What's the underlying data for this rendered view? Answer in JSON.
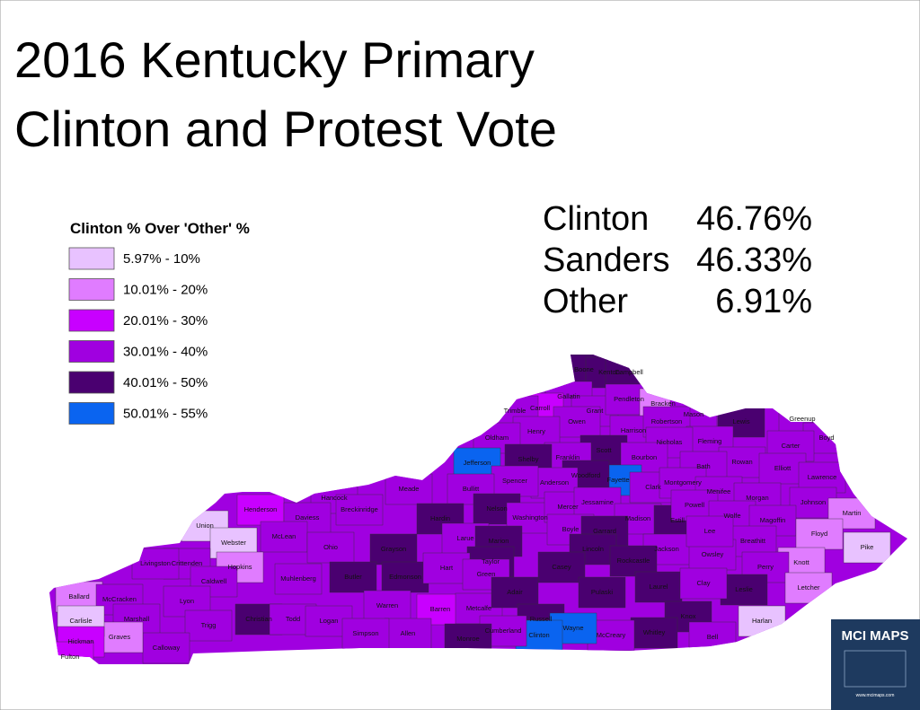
{
  "title": [
    "2016 Kentucky Primary",
    "Clinton and Protest Vote"
  ],
  "legend": {
    "title": "Clinton % Over 'Other' %",
    "entries": [
      {
        "label": "5.97% - 10%",
        "color": "#e8c2ff"
      },
      {
        "label": "10.01% - 20%",
        "color": "#e07cff"
      },
      {
        "label": "20.01% - 30%",
        "color": "#c800ff"
      },
      {
        "label": "30.01% - 40%",
        "color": "#a000e0"
      },
      {
        "label": "40.01% - 50%",
        "color": "#4a0070"
      },
      {
        "label": "50.01% - 55%",
        "color": "#0a64f0"
      }
    ]
  },
  "results": [
    {
      "name": "Clinton",
      "value": "46.76%"
    },
    {
      "name": "Sanders",
      "value": "46.33%"
    },
    {
      "name": "Other",
      "value": "6.91%"
    }
  ],
  "counties": [
    {
      "name": "Boone",
      "color": "#4a0070"
    },
    {
      "name": "Kenton",
      "color": "#4a0070"
    },
    {
      "name": "Campbell",
      "color": "#4a0070"
    },
    {
      "name": "Gallatin",
      "color": "#a000e0"
    },
    {
      "name": "Carroll",
      "color": "#c800ff"
    },
    {
      "name": "Trimble",
      "color": "#a000e0"
    },
    {
      "name": "Grant",
      "color": "#a000e0"
    },
    {
      "name": "Pendleton",
      "color": "#a000e0"
    },
    {
      "name": "Bracken",
      "color": "#e07cff"
    },
    {
      "name": "Mason",
      "color": "#a000e0"
    },
    {
      "name": "Owen",
      "color": "#a000e0"
    },
    {
      "name": "Henry",
      "color": "#a000e0"
    },
    {
      "name": "Oldham",
      "color": "#a000e0"
    },
    {
      "name": "Harrison",
      "color": "#a000e0"
    },
    {
      "name": "Robertson",
      "color": "#a000e0"
    },
    {
      "name": "Lewis",
      "color": "#4a0070"
    },
    {
      "name": "Greenup",
      "color": "#a000e0"
    },
    {
      "name": "Boyd",
      "color": "#a000e0"
    },
    {
      "name": "Fleming",
      "color": "#a000e0"
    },
    {
      "name": "Nicholas",
      "color": "#a000e0"
    },
    {
      "name": "Scott",
      "color": "#4a0070"
    },
    {
      "name": "Franklin",
      "color": "#a000e0"
    },
    {
      "name": "Shelby",
      "color": "#4a0070"
    },
    {
      "name": "Jefferson",
      "color": "#0a64f0"
    },
    {
      "name": "Carter",
      "color": "#a000e0"
    },
    {
      "name": "Rowan",
      "color": "#a000e0"
    },
    {
      "name": "Bourbon",
      "color": "#a000e0"
    },
    {
      "name": "Bath",
      "color": "#a000e0"
    },
    {
      "name": "Elliott",
      "color": "#a000e0"
    },
    {
      "name": "Lawrence",
      "color": "#a000e0"
    },
    {
      "name": "Fayette",
      "color": "#0a64f0"
    },
    {
      "name": "Woodford",
      "color": "#4a0070"
    },
    {
      "name": "Anderson",
      "color": "#a000e0"
    },
    {
      "name": "Spencer",
      "color": "#a000e0"
    },
    {
      "name": "Bullitt",
      "color": "#a000e0"
    },
    {
      "name": "Clark",
      "color": "#a000e0"
    },
    {
      "name": "Montgomery",
      "color": "#a000e0"
    },
    {
      "name": "Menifee",
      "color": "#a000e0"
    },
    {
      "name": "Morgan",
      "color": "#a000e0"
    },
    {
      "name": "Johnson",
      "color": "#a000e0"
    },
    {
      "name": "Martin",
      "color": "#e07cff"
    },
    {
      "name": "Meade",
      "color": "#a000e0"
    },
    {
      "name": "Hancock",
      "color": "#a000e0"
    },
    {
      "name": "Breckinridge",
      "color": "#a000e0"
    },
    {
      "name": "Henderson",
      "color": "#c800ff"
    },
    {
      "name": "Daviess",
      "color": "#a000e0"
    },
    {
      "name": "Union",
      "color": "#e8c2ff"
    },
    {
      "name": "Hardin",
      "color": "#4a0070"
    },
    {
      "name": "Nelson",
      "color": "#4a0070"
    },
    {
      "name": "Washington",
      "color": "#a000e0"
    },
    {
      "name": "Mercer",
      "color": "#a000e0"
    },
    {
      "name": "Jessamine",
      "color": "#a000e0"
    },
    {
      "name": "Madison",
      "color": "#a000e0"
    },
    {
      "name": "Estill",
      "color": "#4a0070"
    },
    {
      "name": "Powell",
      "color": "#a000e0"
    },
    {
      "name": "Wolfe",
      "color": "#a000e0"
    },
    {
      "name": "Magoffin",
      "color": "#a000e0"
    },
    {
      "name": "Floyd",
      "color": "#e07cff"
    },
    {
      "name": "Pike",
      "color": "#e8c2ff"
    },
    {
      "name": "Breathitt",
      "color": "#a000e0"
    },
    {
      "name": "Knott",
      "color": "#e07cff"
    },
    {
      "name": "Perry",
      "color": "#a000e0"
    },
    {
      "name": "Letcher",
      "color": "#e07cff"
    },
    {
      "name": "Harlan",
      "color": "#e8c2ff"
    },
    {
      "name": "Leslie",
      "color": "#4a0070"
    },
    {
      "name": "Webster",
      "color": "#e8c2ff"
    },
    {
      "name": "McLean",
      "color": "#a000e0"
    },
    {
      "name": "Ohio",
      "color": "#a000e0"
    },
    {
      "name": "Grayson",
      "color": "#4a0070"
    },
    {
      "name": "Larue",
      "color": "#a000e0"
    },
    {
      "name": "Marion",
      "color": "#4a0070"
    },
    {
      "name": "Boyle",
      "color": "#a000e0"
    },
    {
      "name": "Garrard",
      "color": "#4a0070"
    },
    {
      "name": "Lincoln",
      "color": "#4a0070"
    },
    {
      "name": "Jackson",
      "color": "#a000e0"
    },
    {
      "name": "Owsley",
      "color": "#a000e0"
    },
    {
      "name": "Lee",
      "color": "#a000e0"
    },
    {
      "name": "Rockcastle",
      "color": "#4a0070"
    },
    {
      "name": "Casey",
      "color": "#4a0070"
    },
    {
      "name": "Taylor",
      "color": "#4a0070"
    },
    {
      "name": "Hopkins",
      "color": "#e07cff"
    },
    {
      "name": "Crittenden",
      "color": "#a000e0"
    },
    {
      "name": "Livingston",
      "color": "#a000e0"
    },
    {
      "name": "Muhlenberg",
      "color": "#a000e0"
    },
    {
      "name": "Butler",
      "color": "#4a0070"
    },
    {
      "name": "Edmonson",
      "color": "#4a0070"
    },
    {
      "name": "Hart",
      "color": "#a000e0"
    },
    {
      "name": "Green",
      "color": "#a000e0"
    },
    {
      "name": "Caldwell",
      "color": "#a000e0"
    },
    {
      "name": "Lyon",
      "color": "#a000e0"
    },
    {
      "name": "Ballard",
      "color": "#e07cff"
    },
    {
      "name": "McCracken",
      "color": "#a000e0"
    },
    {
      "name": "Marshall",
      "color": "#a000e0"
    },
    {
      "name": "Christian",
      "color": "#4a0070"
    },
    {
      "name": "Todd",
      "color": "#a000e0"
    },
    {
      "name": "Logan",
      "color": "#a000e0"
    },
    {
      "name": "Warren",
      "color": "#a000e0"
    },
    {
      "name": "Barren",
      "color": "#c800ff"
    },
    {
      "name": "Metcalfe",
      "color": "#a000e0"
    },
    {
      "name": "Adair",
      "color": "#4a0070"
    },
    {
      "name": "Russell",
      "color": "#4a0070"
    },
    {
      "name": "Pulaski",
      "color": "#4a0070"
    },
    {
      "name": "Laurel",
      "color": "#4a0070"
    },
    {
      "name": "Clay",
      "color": "#a000e0"
    },
    {
      "name": "Knox",
      "color": "#4a0070"
    },
    {
      "name": "Bell",
      "color": "#a000e0"
    },
    {
      "name": "Whitley",
      "color": "#4a0070"
    },
    {
      "name": "McCreary",
      "color": "#a000e0"
    },
    {
      "name": "Wayne",
      "color": "#0a64f0"
    },
    {
      "name": "Clinton",
      "color": "#0a64f0"
    },
    {
      "name": "Cumberland",
      "color": "#a000e0"
    },
    {
      "name": "Monroe",
      "color": "#4a0070"
    },
    {
      "name": "Allen",
      "color": "#a000e0"
    },
    {
      "name": "Simpson",
      "color": "#a000e0"
    },
    {
      "name": "Trigg",
      "color": "#a000e0"
    },
    {
      "name": "Calloway",
      "color": "#a000e0"
    },
    {
      "name": "Graves",
      "color": "#e07cff"
    },
    {
      "name": "Carlisle",
      "color": "#e8c2ff"
    },
    {
      "name": "Hickman",
      "color": "#c800ff"
    },
    {
      "name": "Fulton",
      "color": "#c800ff"
    }
  ],
  "logo": {
    "title": "MCI MAPS",
    "url": "www.mcimaps.com"
  }
}
